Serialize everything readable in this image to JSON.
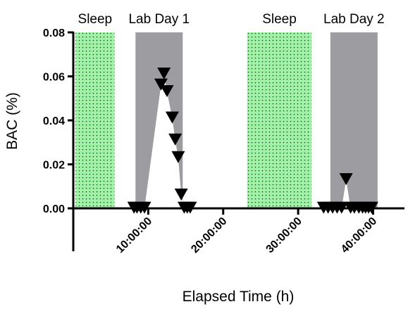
{
  "chart_data": {
    "type": "scatter",
    "xlabel": "Elapsed Time (h)",
    "ylabel": "BAC (%)",
    "xlim": [
      0,
      44
    ],
    "ylim": [
      0,
      0.08
    ],
    "x_ticks": [
      {
        "value": 10,
        "label": "10:00:00"
      },
      {
        "value": 20,
        "label": "20:00:00"
      },
      {
        "value": 30,
        "label": "30:00:00"
      },
      {
        "value": 40,
        "label": "40:00:00"
      }
    ],
    "y_ticks": [
      {
        "value": 0,
        "label": "0.00"
      },
      {
        "value": 0.02,
        "label": "0.02"
      },
      {
        "value": 0.04,
        "label": "0.04"
      },
      {
        "value": 0.06,
        "label": "0.06"
      },
      {
        "value": 0.08,
        "label": "0.08"
      }
    ],
    "bands": [
      {
        "label": "Sleep",
        "x_start": 0.3,
        "x_end": 5.5,
        "style": "dotted-green",
        "color": "#9ff2a6"
      },
      {
        "label": "Lab Day 1",
        "x_start": 8.3,
        "x_end": 14.6,
        "style": "solid-gray",
        "color": "#9d9ca1"
      },
      {
        "label": "Sleep",
        "x_start": 23.2,
        "x_end": 31.8,
        "style": "dotted-green",
        "color": "#9ff2a6"
      },
      {
        "label": "Lab Day 2",
        "x_start": 34.3,
        "x_end": 40.6,
        "style": "solid-gray",
        "color": "#9d9ca1"
      }
    ],
    "series": [
      {
        "marker": "inverted-triangle",
        "color": "#000000",
        "fill_color": "#ffffff",
        "segments": [
          {
            "x": [
              8.1,
              8.5,
              9.0,
              9.5,
              11.7,
              12.1,
              12.5,
              13.2,
              13.6,
              14.0,
              14.4,
              14.8,
              15.2,
              15.6
            ],
            "y": [
              0,
              0,
              0,
              0,
              0.056,
              0.061,
              0.053,
              0.041,
              0.031,
              0.023,
              0.006,
              0,
              0,
              0
            ]
          },
          {
            "x": [
              33.4,
              34.0,
              34.6,
              35.2,
              35.8,
              36.4,
              37.0,
              37.5,
              38.1,
              38.6,
              39.0,
              39.4,
              39.8
            ],
            "y": [
              0,
              0,
              0,
              0,
              0,
              0.013,
              0,
              0,
              0,
              0,
              0,
              0,
              0
            ]
          }
        ]
      }
    ]
  }
}
